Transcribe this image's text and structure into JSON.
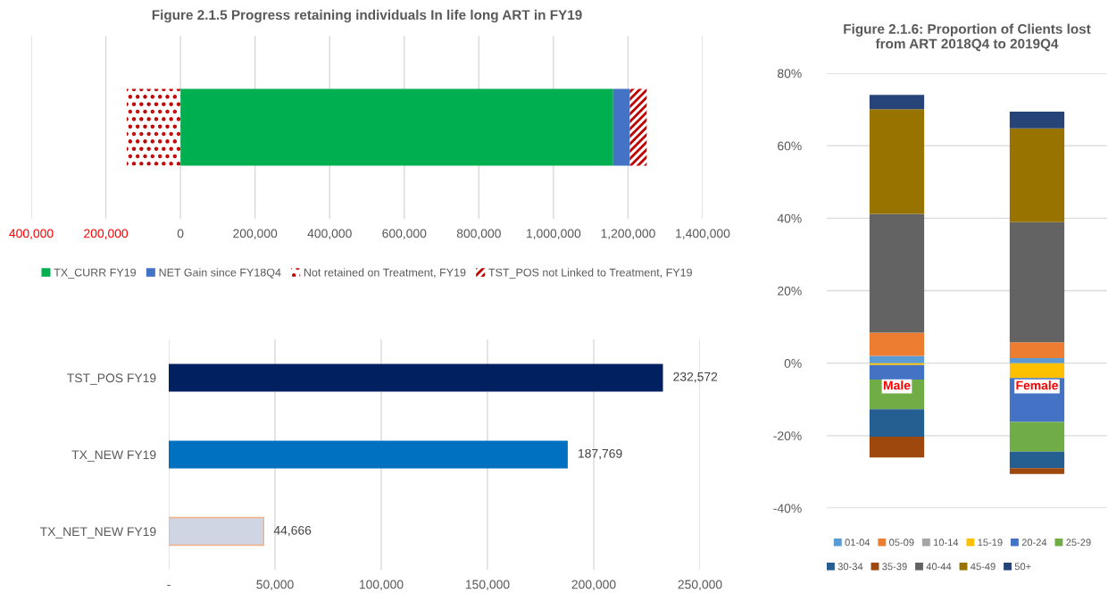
{
  "chart_data": [
    {
      "type": "bar",
      "title": "Figure 2.1.5 Progress retaining individuals In life long ART in FY19",
      "orientation": "horizontal",
      "stacked": true,
      "categories": [
        null
      ],
      "series": [
        {
          "name": "TX_CURR FY19",
          "color": "#00b050",
          "values": [
            1160000
          ]
        },
        {
          "name": "NET Gain since FY18Q4",
          "color": "#4472c4",
          "values": [
            45000
          ]
        },
        {
          "name": "Not retained on Treatment, FY19",
          "color": "#c00000",
          "values": [
            -144000
          ]
        },
        {
          "name": "TST_POS not Linked to Treatment, FY19",
          "color": "#c00000",
          "values": [
            45000
          ]
        }
      ],
      "xlim": [
        -400000,
        1400000
      ],
      "xticks": [
        {
          "value": -400000,
          "label": "400,000"
        },
        {
          "value": -200000,
          "label": "200,000"
        },
        0,
        {
          "value": 200000,
          "label": "200,000"
        },
        {
          "value": 400000,
          "label": "400,000"
        },
        {
          "value": 600000,
          "label": "600,000"
        },
        {
          "value": 800000,
          "label": "800,000"
        },
        {
          "value": 1000000,
          "label": "1,000,000"
        },
        {
          "value": 1200000,
          "label": "1,200,000"
        },
        {
          "value": 1400000,
          "label": "1,400,000"
        }
      ],
      "grid": "x",
      "legend": "bottom"
    },
    {
      "type": "bar",
      "orientation": "horizontal",
      "categories": [
        "TST_POS FY19",
        "TX_NEW FY19",
        "TX_NET_NEW FY19"
      ],
      "values": [
        232572,
        187769,
        44666
      ],
      "colors": [
        "#002060",
        "#0070c0",
        "#cfd5e3"
      ],
      "value_labels": [
        "232,572",
        "187,769",
        "44,666"
      ],
      "xlim": [
        0,
        250000
      ],
      "xticks": [
        {
          "value": 0,
          "label": "-"
        },
        {
          "value": 50000,
          "label": "50,000"
        },
        {
          "value": 100000,
          "label": "100,000"
        },
        {
          "value": 150000,
          "label": "150,000"
        },
        {
          "value": 200000,
          "label": "200,000"
        },
        {
          "value": 250000,
          "label": "250,000"
        }
      ],
      "grid": "x"
    },
    {
      "type": "bar",
      "title": "Figure 2.1.6: Proportion of Clients lost\nfrom ART 2018Q4 to 2019Q4",
      "stacked": true,
      "categories": [
        "Male",
        "Female"
      ],
      "series": [
        {
          "name": "01-04",
          "color": "#5b9bd5",
          "values": [
            2.0,
            1.4
          ]
        },
        {
          "name": "05-09",
          "color": "#ed7d31",
          "values": [
            6.4,
            4.4
          ]
        },
        {
          "name": "10-14",
          "color": "#a5a5a5",
          "values": [
            0,
            0
          ]
        },
        {
          "name": "15-19",
          "color": "#ffc000",
          "values": [
            -0.5,
            -4.1
          ]
        },
        {
          "name": "20-24",
          "color": "#4472c4",
          "values": [
            -4.0,
            -12.1
          ]
        },
        {
          "name": "25-29",
          "color": "#70ad47",
          "values": [
            -8.2,
            -8.2
          ]
        },
        {
          "name": "30-34",
          "color": "#255e91",
          "values": [
            -7.6,
            -4.6
          ]
        },
        {
          "name": "35-39",
          "color": "#9e480e",
          "values": [
            -5.7,
            -1.6
          ]
        },
        {
          "name": "40-44",
          "color": "#636363",
          "values": [
            32.8,
            33.1
          ]
        },
        {
          "name": "45-49",
          "color": "#997300",
          "values": [
            28.9,
            25.9
          ]
        },
        {
          "name": "50+",
          "color": "#264478",
          "values": [
            3.9,
            4.6
          ]
        }
      ],
      "ylim": [
        -40,
        80
      ],
      "yticks": [
        {
          "value": -40,
          "label": "-40%"
        },
        {
          "value": -20,
          "label": "-20%"
        },
        {
          "value": 0,
          "label": "0%"
        },
        {
          "value": 20,
          "label": "20%"
        },
        {
          "value": 40,
          "label": "40%"
        },
        {
          "value": 60,
          "label": "60%"
        },
        {
          "value": 80,
          "label": "80%"
        }
      ],
      "grid": "y",
      "legend": "bottom"
    }
  ]
}
